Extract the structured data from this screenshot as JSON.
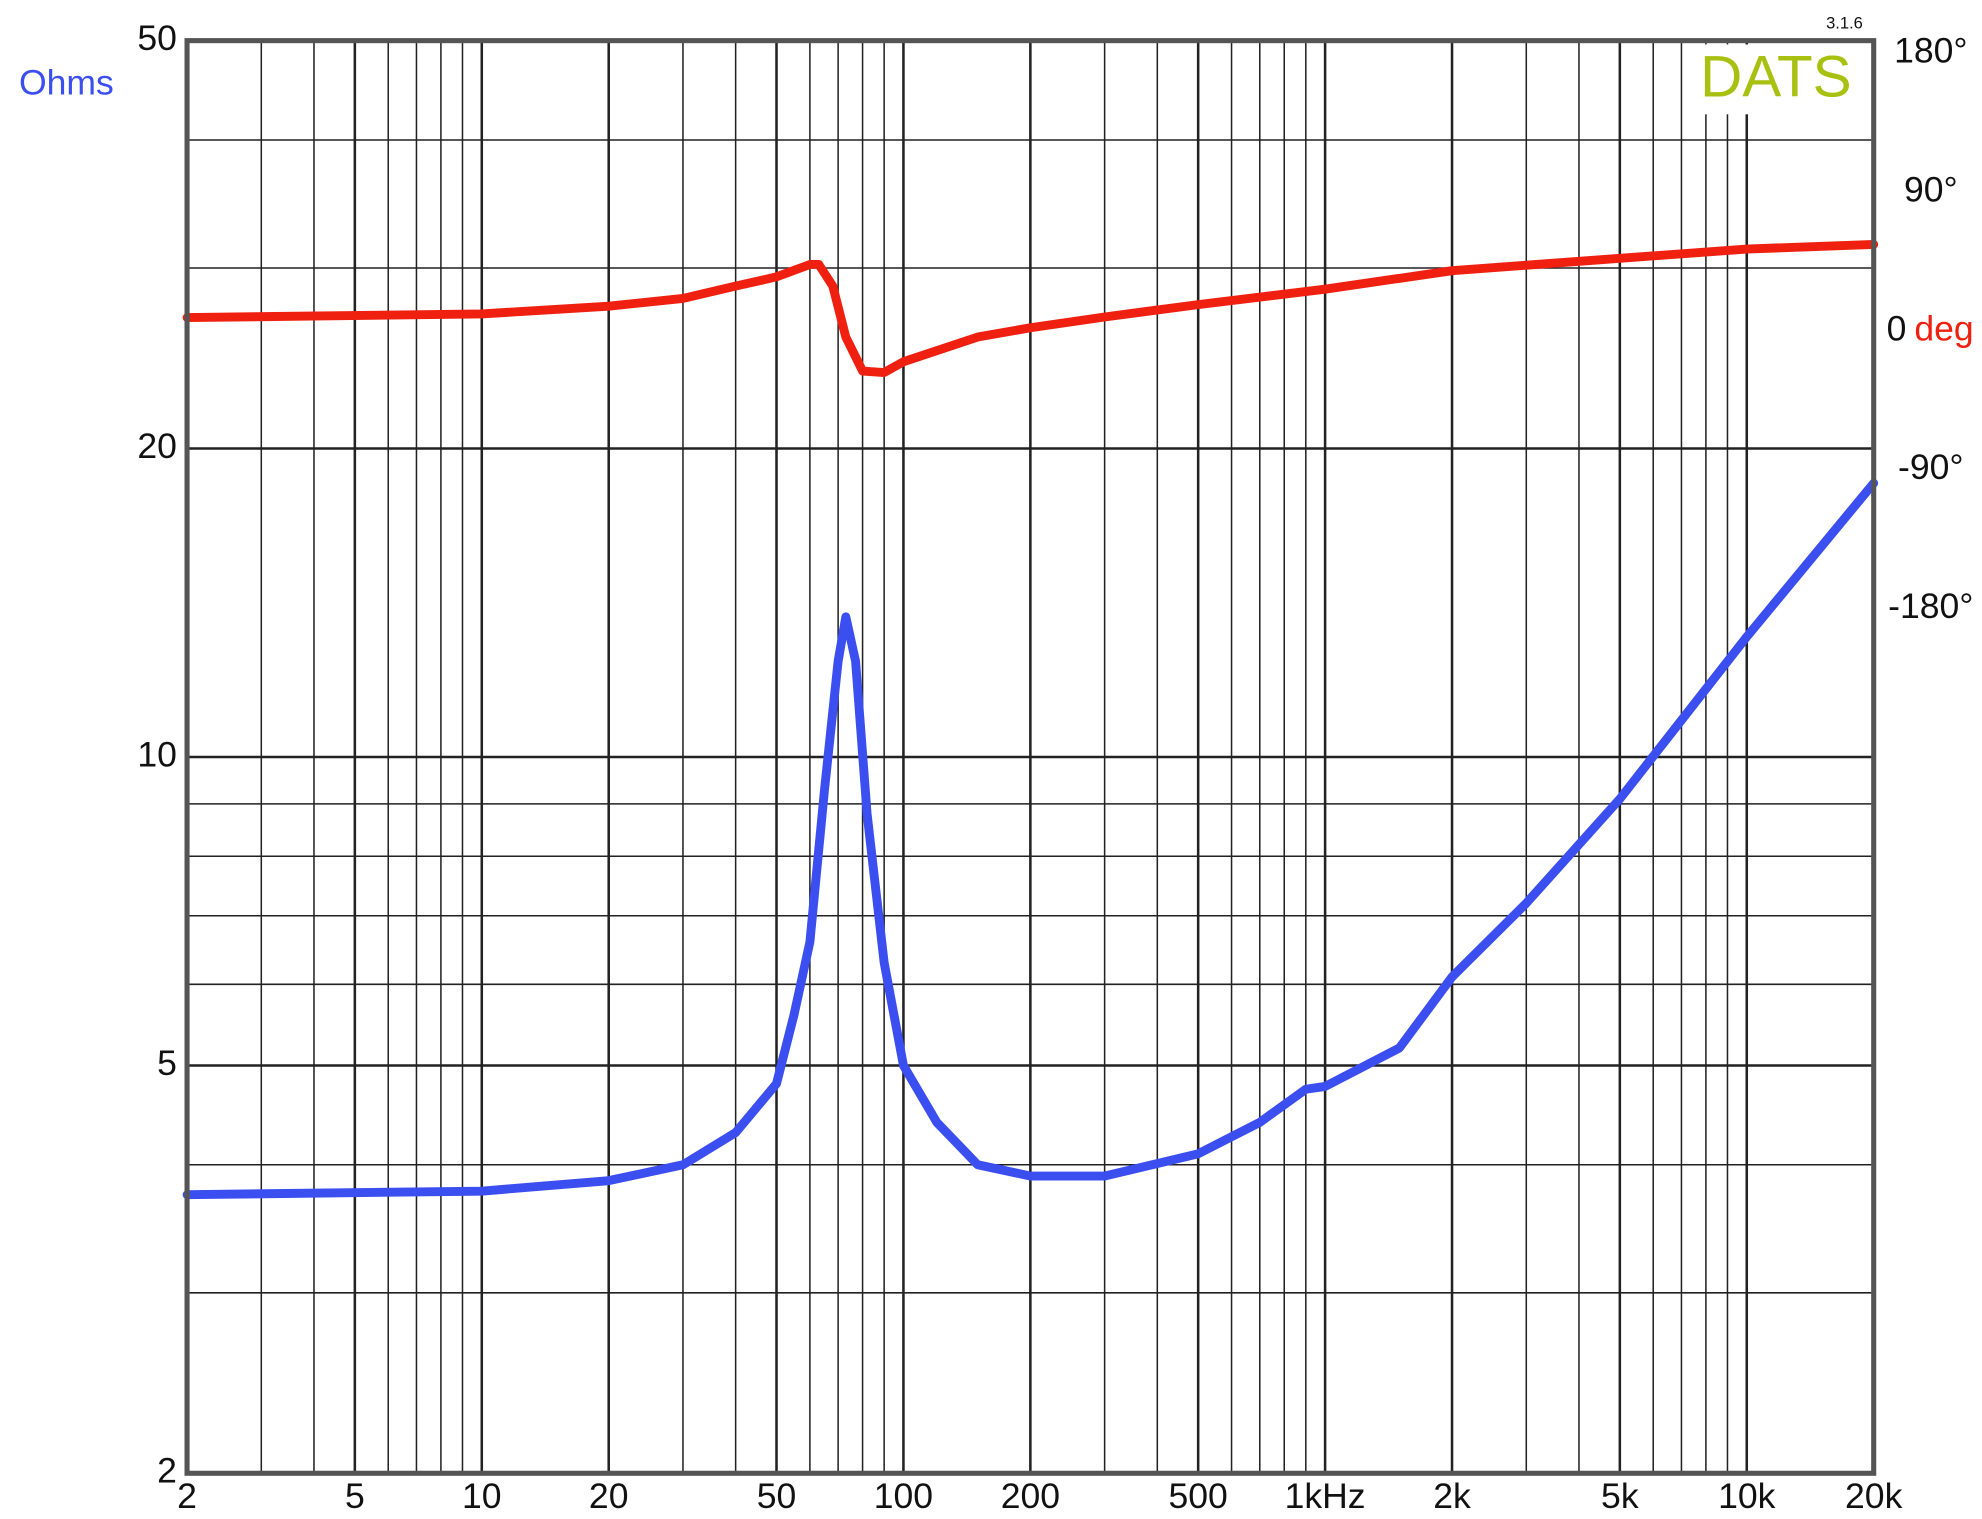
{
  "chart_data": {
    "type": "line",
    "y_label": "Ohms",
    "y2_label": "deg",
    "watermark": "DATS",
    "version": "3.1.6",
    "xscale": "log",
    "yscale": "log",
    "grid": true,
    "xlim": [
      2,
      20000
    ],
    "xticks": [
      2,
      5,
      10,
      20,
      50,
      100,
      200,
      500,
      {
        "value": 1000,
        "label": "1kHz"
      },
      {
        "value": 2000,
        "label": "2k"
      },
      {
        "value": 5000,
        "label": "5k"
      },
      {
        "value": 10000,
        "label": "10k"
      },
      {
        "value": 20000,
        "label": "20k"
      }
    ],
    "x_minor_grid": [
      3,
      4,
      6,
      7,
      8,
      9,
      30,
      40,
      60,
      70,
      80,
      90,
      300,
      400,
      600,
      700,
      800,
      900,
      3000,
      4000,
      6000,
      7000,
      8000,
      9000
    ],
    "ylim": [
      2,
      50
    ],
    "yticks": [
      2,
      5,
      10,
      20,
      50
    ],
    "y_minor_grid": [
      3,
      4,
      6,
      7,
      8,
      9,
      30,
      40
    ],
    "y2lim": [
      -740,
      188
    ],
    "y2ticks": [
      {
        "value": 180,
        "label": "180°"
      },
      {
        "value": 90,
        "label": "90°"
      },
      0,
      {
        "value": -90,
        "label": "-90°"
      },
      {
        "value": -180,
        "label": "-180°"
      }
    ],
    "series": [
      {
        "color": "#3b4ff0",
        "x": [
          2,
          10,
          20,
          30,
          40,
          50,
          55,
          60,
          65,
          70,
          73,
          77,
          82,
          90,
          100,
          120,
          150,
          200,
          300,
          500,
          700,
          900,
          1000,
          1500,
          2000,
          3000,
          5000,
          10000,
          20000
        ],
        "values": [
          3.74,
          3.77,
          3.86,
          4.0,
          4.3,
          4.8,
          5.6,
          6.6,
          9.3,
          12.4,
          13.7,
          12.4,
          8.8,
          6.3,
          5.0,
          4.4,
          4.0,
          3.9,
          3.9,
          4.1,
          4.4,
          4.74,
          4.77,
          5.2,
          6.1,
          7.2,
          9.1,
          13.1,
          18.5
        ]
      },
      {
        "color": "#f02010",
        "axis": "y2",
        "x": [
          2,
          10,
          20,
          30,
          40,
          50,
          60,
          63,
          68,
          73,
          80,
          90,
          100,
          150,
          200,
          300,
          500,
          1000,
          2000,
          5000,
          10000,
          20000
        ],
        "values": [
          8.6,
          11,
          16,
          21,
          29,
          35,
          43,
          43,
          29,
          -4,
          -26,
          -27,
          -20,
          -4,
          2,
          9,
          17,
          27,
          39,
          47,
          53,
          56
        ]
      }
    ]
  }
}
